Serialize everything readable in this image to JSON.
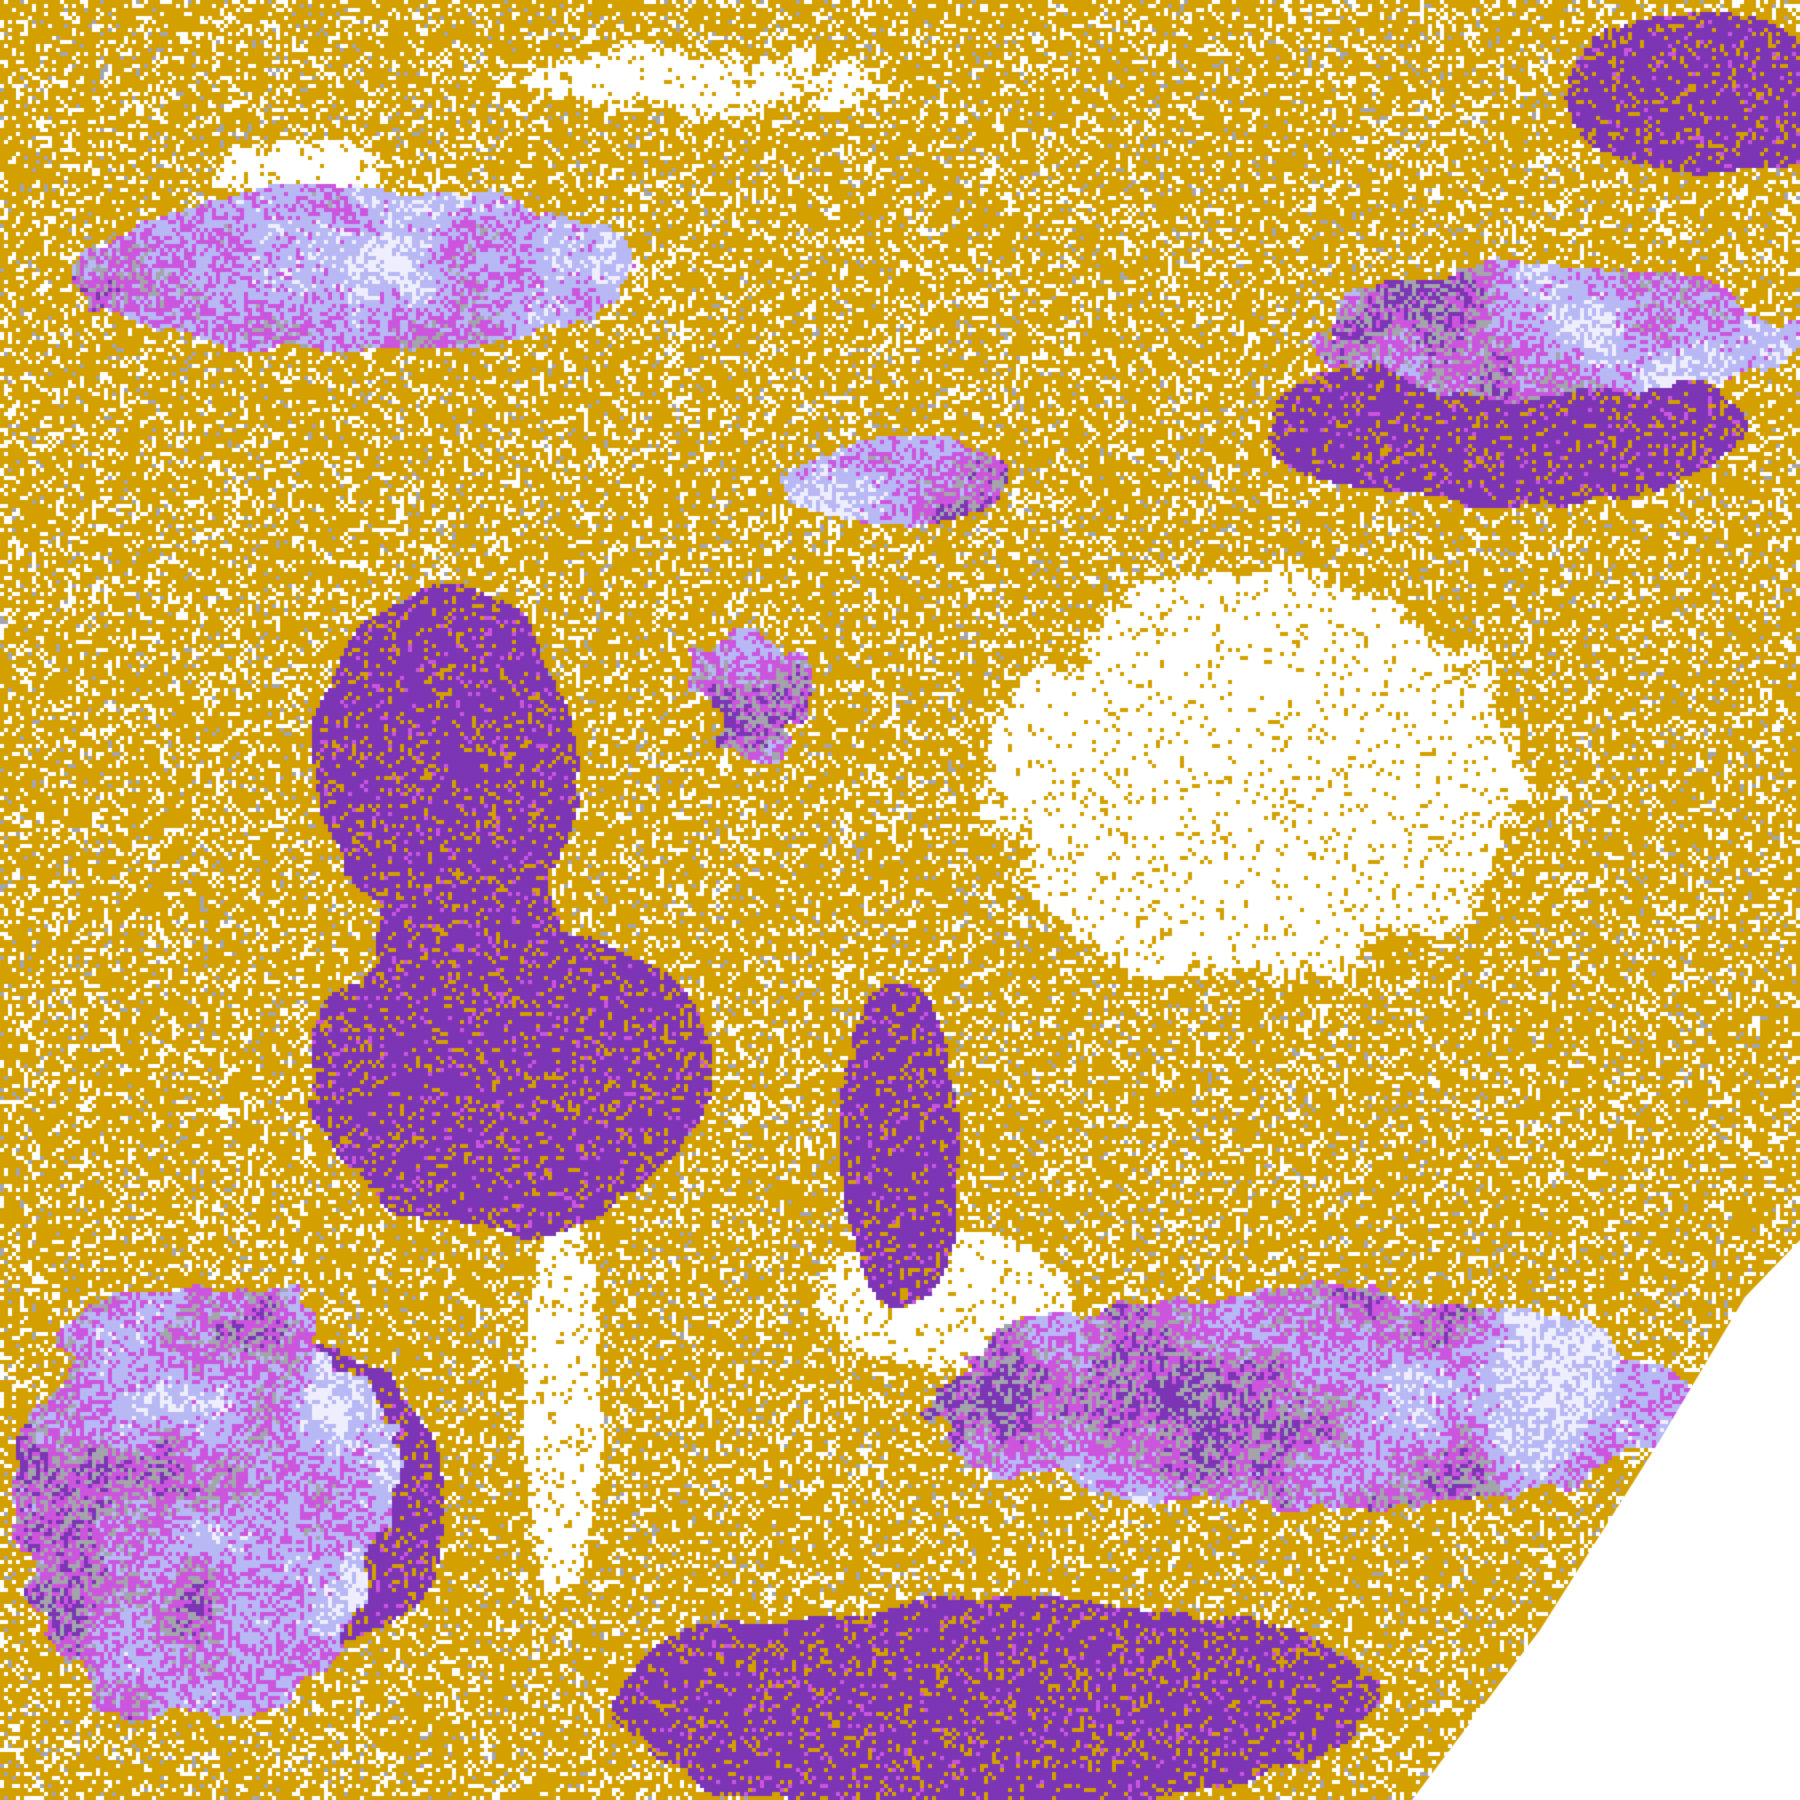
{
  "image": {
    "kind": "false-color satellite cloud imagery",
    "palette": {
      "clear": "#ffffff",
      "low_cloud": "#d4a000",
      "mid_cloud": "#7b35b5",
      "high_cloud": "#cc55dd",
      "thin_cirrus": "#b8b8f5",
      "bright_cloud": "#eeeeff",
      "gray_cloud": "#a4a4ac"
    }
  }
}
